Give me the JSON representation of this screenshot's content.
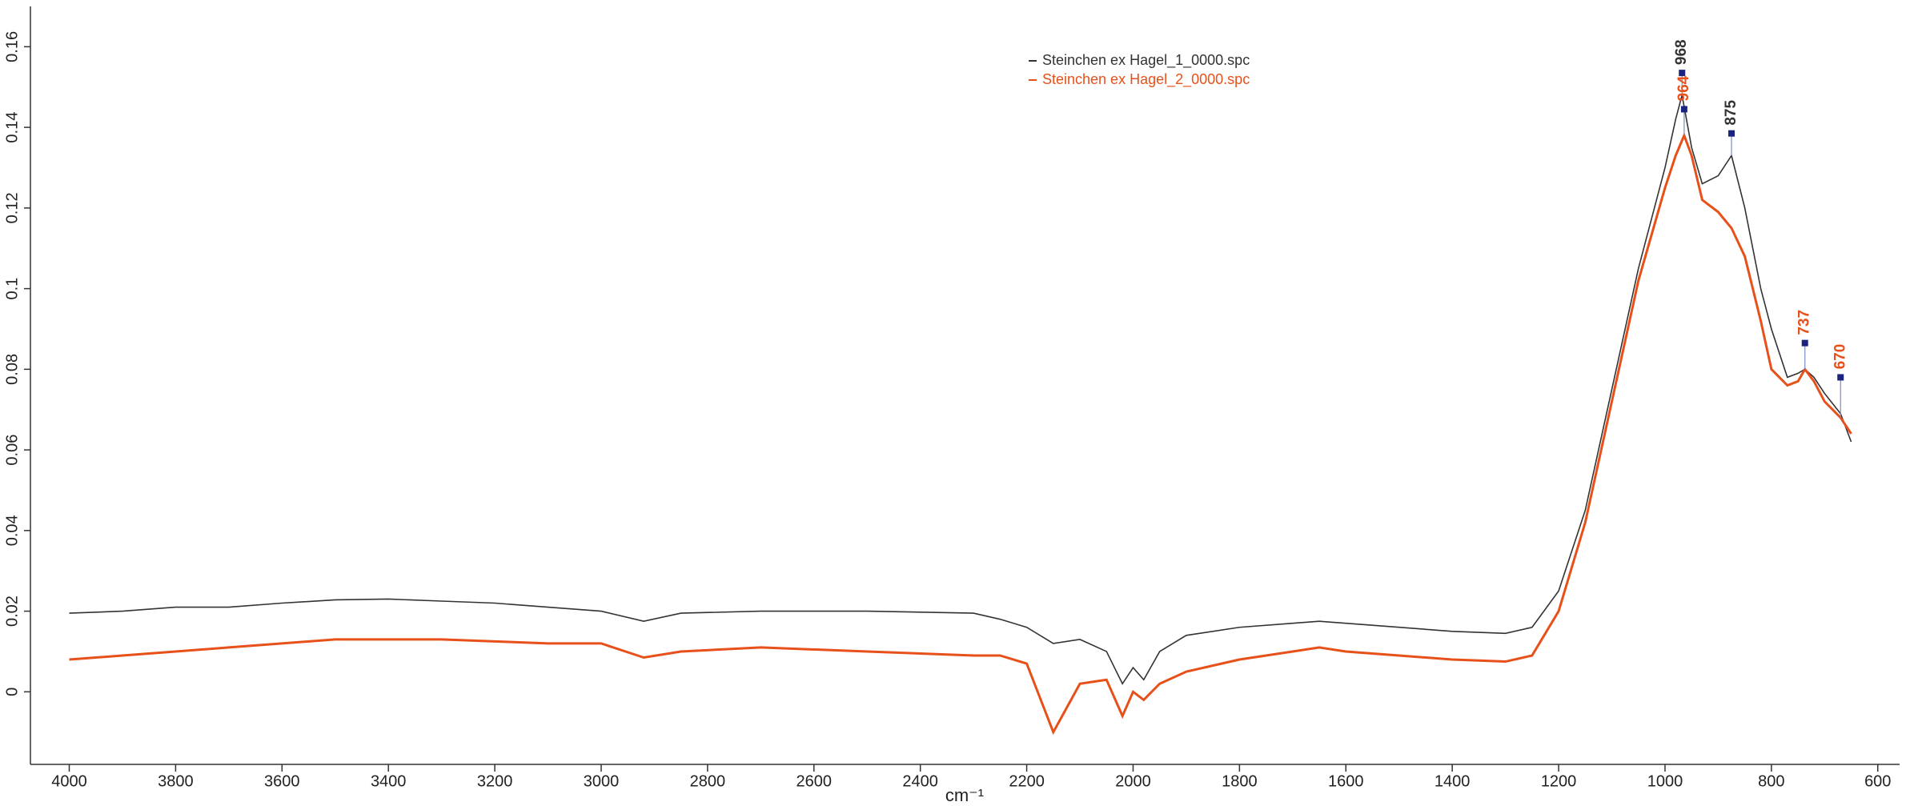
{
  "chart_data": {
    "type": "line",
    "x_label": "cm⁻¹",
    "xlim": [
      4073,
      559
    ],
    "ylim": [
      -0.018,
      0.17
    ],
    "xticks": [
      4000,
      3800,
      3600,
      3400,
      3200,
      3000,
      2800,
      2600,
      2400,
      2200,
      2000,
      1800,
      1600,
      1400,
      1200,
      1000,
      800,
      600
    ],
    "yticks": [
      0,
      0.02,
      0.04,
      0.06,
      0.08,
      0.1,
      0.12,
      0.14,
      0.16
    ],
    "legend": "top",
    "series": [
      {
        "name": "Steinchen ex Hagel_1_0000.spc",
        "color": "#333333",
        "x": [
          4000,
          3900,
          3800,
          3700,
          3600,
          3500,
          3400,
          3300,
          3200,
          3100,
          3000,
          2920,
          2850,
          2700,
          2500,
          2300,
          2250,
          2200,
          2150,
          2100,
          2050,
          2020,
          2000,
          1980,
          1950,
          1900,
          1800,
          1700,
          1650,
          1600,
          1500,
          1400,
          1300,
          1250,
          1200,
          1150,
          1100,
          1050,
          1000,
          980,
          968,
          950,
          930,
          900,
          875,
          850,
          820,
          800,
          770,
          750,
          737,
          720,
          700,
          670,
          650
        ],
        "values": [
          0.0195,
          0.02,
          0.021,
          0.021,
          0.022,
          0.0228,
          0.023,
          0.0225,
          0.022,
          0.021,
          0.02,
          0.0175,
          0.0195,
          0.02,
          0.02,
          0.0195,
          0.018,
          0.016,
          0.012,
          0.013,
          0.01,
          0.002,
          0.006,
          0.003,
          0.01,
          0.014,
          0.016,
          0.017,
          0.0175,
          0.017,
          0.016,
          0.015,
          0.0145,
          0.016,
          0.025,
          0.045,
          0.075,
          0.105,
          0.13,
          0.142,
          0.148,
          0.135,
          0.126,
          0.128,
          0.133,
          0.12,
          0.1,
          0.09,
          0.078,
          0.079,
          0.08,
          0.078,
          0.074,
          0.069,
          0.062
        ],
        "peaks": {
          "x": [
            968,
            875
          ],
          "y": [
            0.1535,
            0.1385
          ]
        }
      },
      {
        "name": "Steinchen ex Hagel_2_0000.spc",
        "color": "#e8501a",
        "x": [
          4000,
          3900,
          3800,
          3700,
          3600,
          3500,
          3400,
          3300,
          3200,
          3100,
          3000,
          2920,
          2850,
          2700,
          2500,
          2300,
          2250,
          2200,
          2150,
          2100,
          2050,
          2020,
          2000,
          1980,
          1950,
          1900,
          1800,
          1700,
          1650,
          1600,
          1500,
          1400,
          1300,
          1250,
          1200,
          1150,
          1100,
          1050,
          1000,
          980,
          964,
          950,
          930,
          900,
          875,
          850,
          820,
          800,
          770,
          750,
          737,
          720,
          700,
          670,
          650
        ],
        "values": [
          0.008,
          0.009,
          0.01,
          0.011,
          0.012,
          0.013,
          0.013,
          0.013,
          0.0125,
          0.012,
          0.012,
          0.0085,
          0.01,
          0.011,
          0.01,
          0.009,
          0.009,
          0.007,
          -0.01,
          0.002,
          0.003,
          -0.006,
          0.0,
          -0.002,
          0.002,
          0.005,
          0.008,
          0.01,
          0.011,
          0.01,
          0.009,
          0.008,
          0.0075,
          0.009,
          0.02,
          0.042,
          0.072,
          0.102,
          0.125,
          0.133,
          0.138,
          0.133,
          0.122,
          0.119,
          0.115,
          0.108,
          0.092,
          0.08,
          0.076,
          0.077,
          0.08,
          0.077,
          0.072,
          0.068,
          0.064
        ],
        "peaks": {
          "x": [
            964,
            737,
            670
          ],
          "y": [
            0.1445,
            0.0865,
            0.078
          ]
        }
      }
    ]
  }
}
